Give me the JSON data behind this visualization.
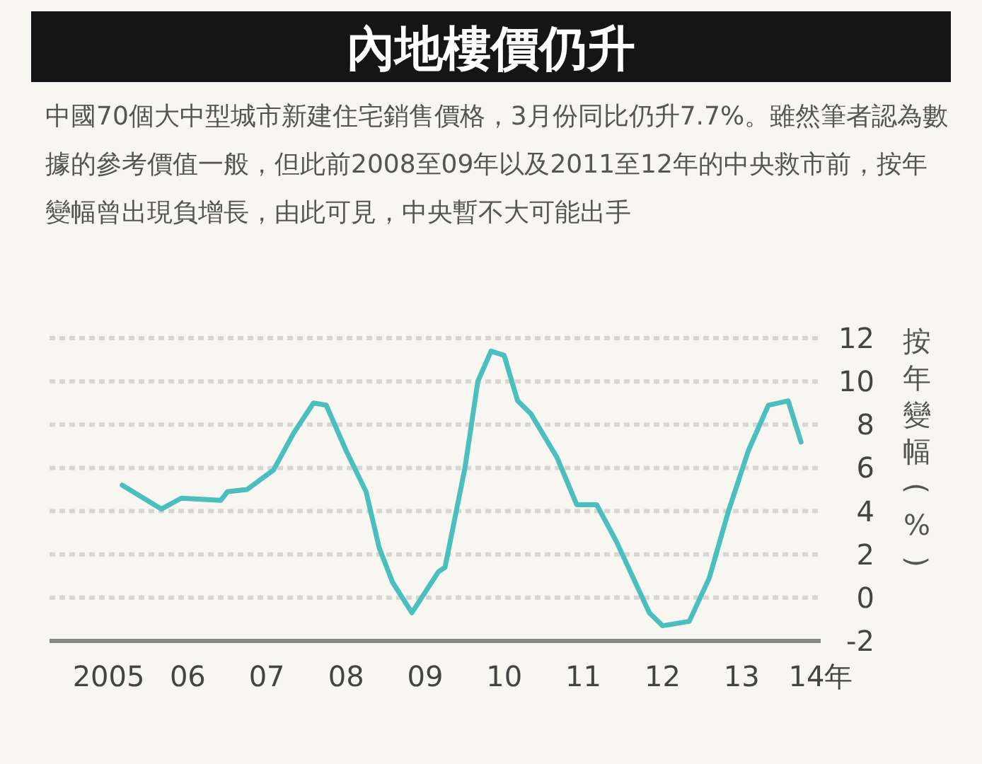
{
  "chart_data": {
    "type": "line",
    "title": "內地樓價仍升",
    "subtitle": "中國70個大中型城市新建住宅銷售價格，3月份同比仍升7.7%。雖然筆者認為數據的參考價值一般，但此前2008至09年以及2011至12年的中央救市前，按年變幅曾出現負增長，由此可見，中央暫不大可能出手",
    "ylabel": "按年變幅(%)",
    "x": [
      "2005-09",
      "2006-03",
      "2006-06",
      "2006-12",
      "2007-01",
      "2007-04",
      "2007-08",
      "2007-11",
      "2008-02",
      "2008-04",
      "2008-07",
      "2008-10",
      "2008-12",
      "2009-02",
      "2009-05",
      "2009-09",
      "2009-10",
      "2010-01",
      "2010-03",
      "2010-05",
      "2010-07",
      "2010-09",
      "2010-11",
      "2011-03",
      "2011-06",
      "2011-09",
      "2011-12",
      "2012-05",
      "2012-07",
      "2012-11",
      "2013-02",
      "2013-05",
      "2013-08",
      "2013-11",
      "2014-02",
      "2014-04"
    ],
    "series": [
      {
        "color": "#4bbfbf",
        "values": [
          5.2,
          4.1,
          4.6,
          4.5,
          4.9,
          5.0,
          5.9,
          7.6,
          9.0,
          8.9,
          6.8,
          4.9,
          2.3,
          0.7,
          -0.7,
          1.2,
          1.4,
          6.0,
          10.0,
          11.4,
          11.2,
          9.1,
          8.5,
          6.5,
          4.3,
          4.3,
          2.6,
          -0.7,
          -1.3,
          -1.1,
          0.9,
          4.0,
          6.8,
          8.9,
          9.1,
          7.2
        ]
      }
    ],
    "xlim": [
      "2004-10",
      "2014-07"
    ],
    "xticks": [
      {
        "value": "2005-07",
        "label": "2005"
      },
      {
        "value": "2006-07",
        "label": "06"
      },
      {
        "value": "2007-07",
        "label": "07"
      },
      {
        "value": "2008-07",
        "label": "08"
      },
      {
        "value": "2009-07",
        "label": "09"
      },
      {
        "value": "2010-07",
        "label": "10"
      },
      {
        "value": "2011-07",
        "label": "11"
      },
      {
        "value": "2012-07",
        "label": "12"
      },
      {
        "value": "2013-07",
        "label": "13"
      },
      {
        "value": "2014-07",
        "label": "14年"
      }
    ],
    "ylim": [
      -2,
      12
    ],
    "yticks": [
      -2,
      0,
      2,
      4,
      6,
      8,
      10,
      12
    ],
    "grid": "y",
    "line_style": "solid"
  }
}
